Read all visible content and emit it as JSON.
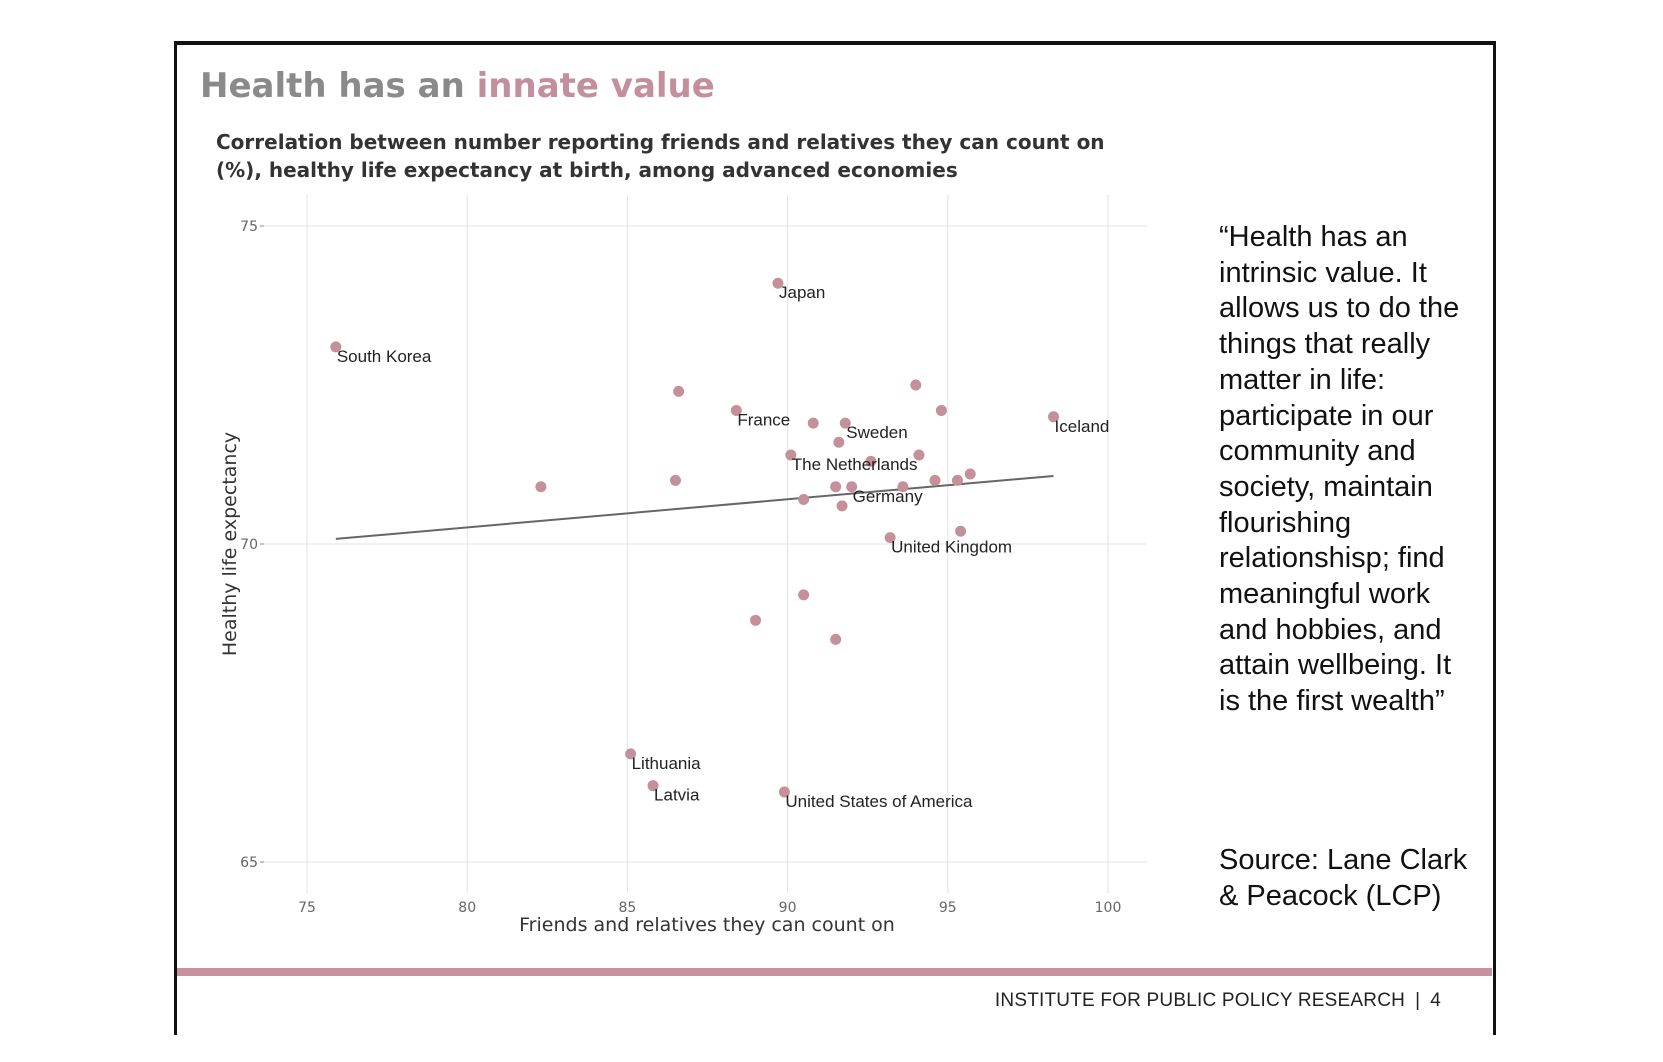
{
  "slide": {
    "title_part1": "Health has an ",
    "title_part2": "innate value",
    "subtitle": "Correlation between number reporting friends and relatives they can count on (%), healthy life expectancy at birth, among advanced economies",
    "quote": "“Health has an intrinsic value. It allows us to do the things that really matter in life: participate in our community and society, maintain flourishing relationshisp; find meaningful work and hobbies, and attain wellbeing. It is the first wealth”",
    "source": "Source: Lane Clark & Peacock (LCP)",
    "footer_org": "INSTITUTE FOR PUBLIC POLICY RESEARCH",
    "footer_sep": "|",
    "page_number": "4",
    "colors": {
      "title": "#8a8a8a",
      "accent": "#c38f9c",
      "point": "#c4909c",
      "bar": "#c9919e",
      "trend": "#666666"
    }
  },
  "chart_data": {
    "type": "scatter",
    "title": "",
    "xlabel": "Friends and relatives they can count on",
    "ylabel": "Healthy life expectancy",
    "xlim": [
      73.5,
      102.5
    ],
    "ylim": [
      64.5,
      75.5
    ],
    "xticks": [
      75,
      80,
      85,
      90,
      95,
      100
    ],
    "yticks": [
      65,
      70,
      75
    ],
    "grid": true,
    "legend": "none",
    "points": [
      {
        "x": 89.7,
        "y": 74.1,
        "label": "Japan"
      },
      {
        "x": 75.9,
        "y": 73.1,
        "label": "South Korea"
      },
      {
        "x": 86.6,
        "y": 72.4,
        "label": ""
      },
      {
        "x": 88.4,
        "y": 72.1,
        "label": "France"
      },
      {
        "x": 90.8,
        "y": 71.9,
        "label": ""
      },
      {
        "x": 91.8,
        "y": 71.9,
        "label": "Sweden"
      },
      {
        "x": 94.0,
        "y": 72.5,
        "label": ""
      },
      {
        "x": 94.8,
        "y": 72.1,
        "label": ""
      },
      {
        "x": 98.3,
        "y": 72.0,
        "label": "Iceland"
      },
      {
        "x": 91.6,
        "y": 71.6,
        "label": ""
      },
      {
        "x": 90.1,
        "y": 71.4,
        "label": "The Netherlands"
      },
      {
        "x": 94.1,
        "y": 71.4,
        "label": ""
      },
      {
        "x": 92.6,
        "y": 71.3,
        "label": ""
      },
      {
        "x": 82.3,
        "y": 70.9,
        "label": ""
      },
      {
        "x": 86.5,
        "y": 71.0,
        "label": ""
      },
      {
        "x": 91.5,
        "y": 70.9,
        "label": ""
      },
      {
        "x": 92.0,
        "y": 70.9,
        "label": "Germany"
      },
      {
        "x": 93.6,
        "y": 70.9,
        "label": ""
      },
      {
        "x": 94.6,
        "y": 71.0,
        "label": ""
      },
      {
        "x": 95.3,
        "y": 71.0,
        "label": ""
      },
      {
        "x": 95.7,
        "y": 71.1,
        "label": ""
      },
      {
        "x": 90.5,
        "y": 70.7,
        "label": ""
      },
      {
        "x": 91.7,
        "y": 70.6,
        "label": ""
      },
      {
        "x": 93.2,
        "y": 70.1,
        "label": "United Kingdom"
      },
      {
        "x": 95.4,
        "y": 70.2,
        "label": ""
      },
      {
        "x": 90.5,
        "y": 69.2,
        "label": ""
      },
      {
        "x": 89.0,
        "y": 68.8,
        "label": ""
      },
      {
        "x": 91.5,
        "y": 68.5,
        "label": ""
      },
      {
        "x": 85.1,
        "y": 66.7,
        "label": "Lithuania"
      },
      {
        "x": 85.8,
        "y": 66.2,
        "label": "Latvia"
      },
      {
        "x": 89.9,
        "y": 66.1,
        "label": "United States of America"
      }
    ],
    "trendline": {
      "x": [
        75.9,
        98.3
      ],
      "y": [
        70.08,
        71.07
      ]
    }
  }
}
